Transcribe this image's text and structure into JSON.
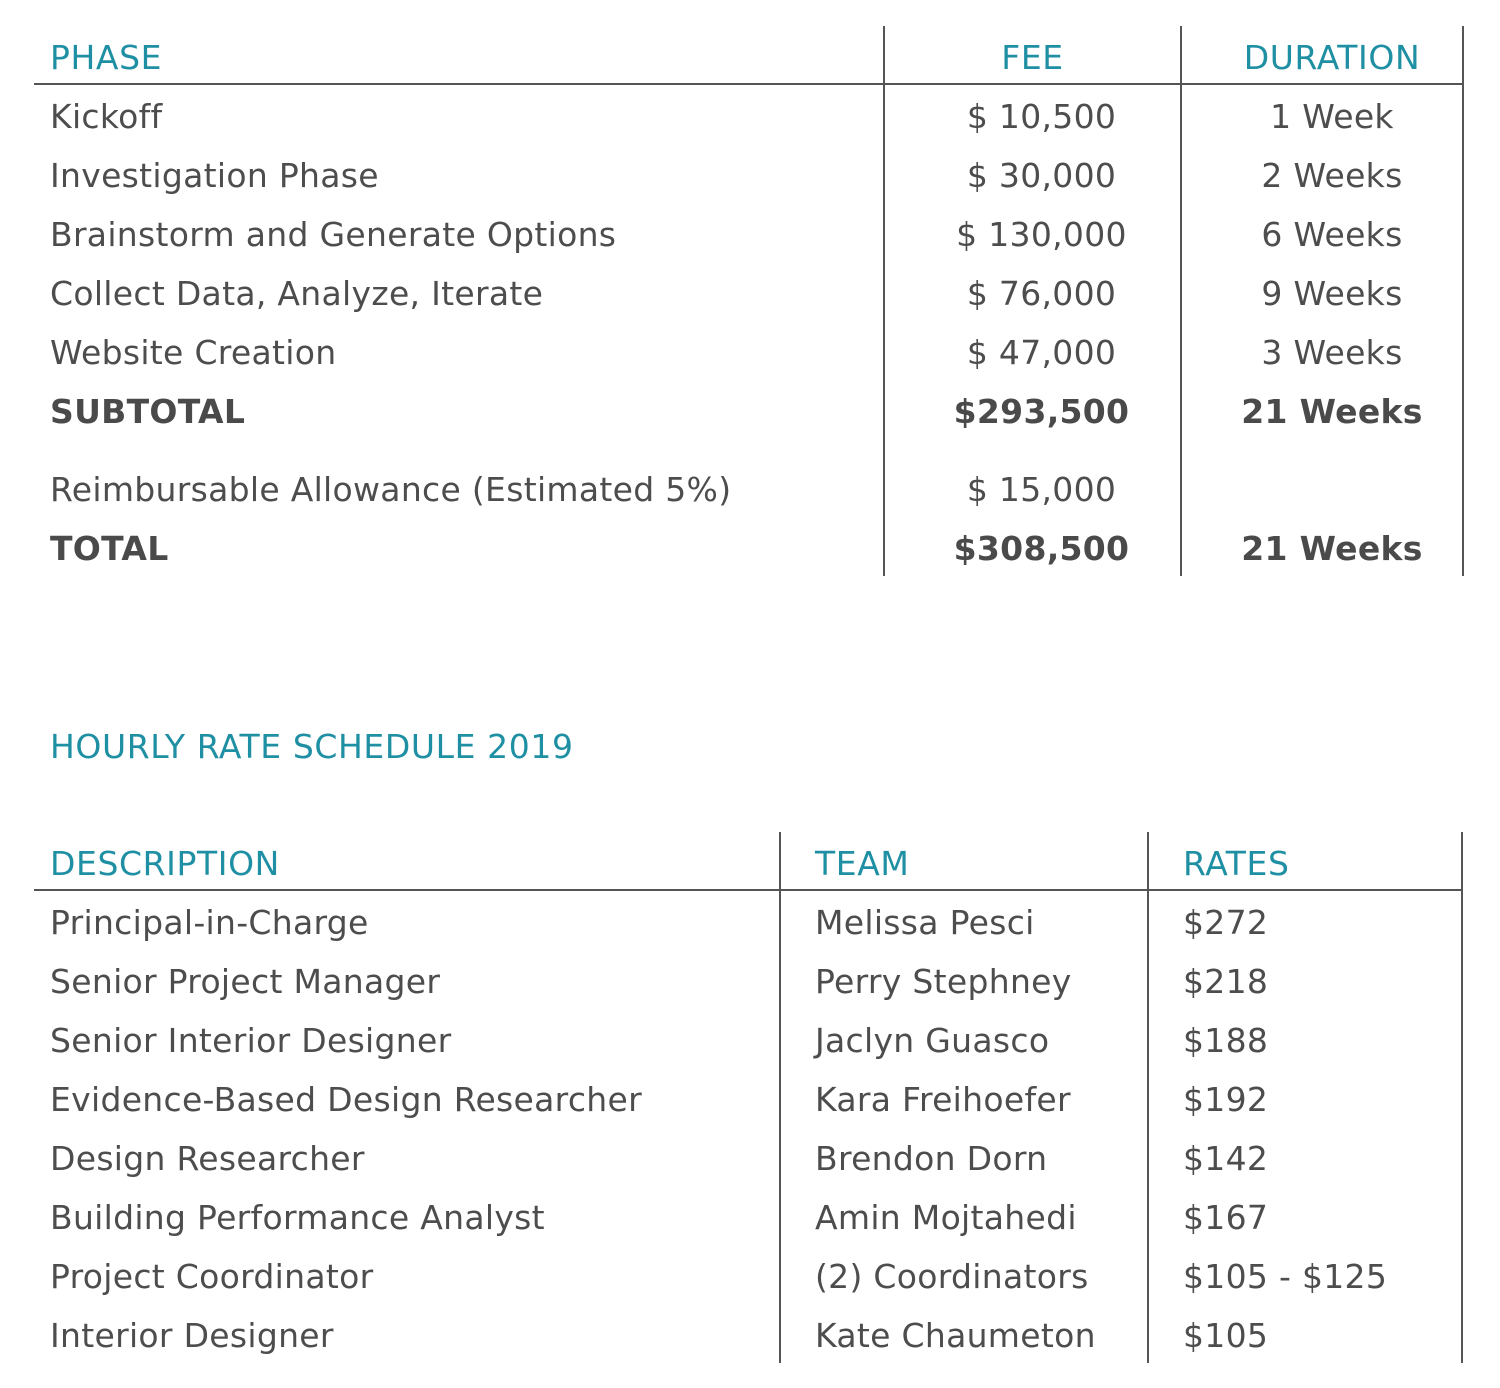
{
  "fee_table": {
    "headers": {
      "phase": "PHASE",
      "fee": "FEE",
      "duration": "DURATION"
    },
    "rows": [
      {
        "phase": "Kickoff",
        "fee": "$  10,500",
        "duration": "1 Week"
      },
      {
        "phase": "Investigation Phase",
        "fee": "$  30,000",
        "duration": "2 Weeks"
      },
      {
        "phase": "Brainstorm and Generate Options",
        "fee": "$ 130,000",
        "duration": "6 Weeks"
      },
      {
        "phase": "Collect Data, Analyze, Iterate",
        "fee": "$ 76,000",
        "duration": "9 Weeks"
      },
      {
        "phase": "Website Creation",
        "fee": "$ 47,000",
        "duration": "3 Weeks"
      }
    ],
    "subtotal": {
      "label": "SUBTOTAL",
      "fee": "$293,500",
      "duration": "21 Weeks"
    },
    "reimbursable": {
      "label": "Reimbursable Allowance (Estimated 5%)",
      "fee": "$  15,000",
      "duration": ""
    },
    "total": {
      "label": "TOTAL",
      "fee": "$308,500",
      "duration": "21 Weeks"
    }
  },
  "hourly_title": "HOURLY RATE SCHEDULE 2019",
  "rate_table": {
    "headers": {
      "description": "DESCRIPTION",
      "team": "TEAM",
      "rates": "RATES"
    },
    "rows": [
      {
        "description": "Principal-in-Charge",
        "team": "Melissa Pesci",
        "rate": "$272"
      },
      {
        "description": "Senior Project Manager",
        "team": "Perry Stephney",
        "rate": "$218"
      },
      {
        "description": "Senior Interior Designer",
        "team": "Jaclyn Guasco",
        "rate": "$188"
      },
      {
        "description": "Evidence-Based Design Researcher",
        "team": "Kara Freihoefer",
        "rate": "$192"
      },
      {
        "description": "Design Researcher",
        "team": "Brendon Dorn",
        "rate": "$142"
      },
      {
        "description": "Building Performance Analyst",
        "team": "Amin Mojtahedi",
        "rate": "$167"
      },
      {
        "description": "Project Coordinator",
        "team": "(2) Coordinators",
        "rate": "$105 - $125"
      },
      {
        "description": "Interior Designer",
        "team": "Kate Chaumeton",
        "rate": "$105"
      }
    ]
  },
  "colors": {
    "accent": "#1f8fa3",
    "text": "#4d4d4d",
    "rule": "#555555"
  }
}
